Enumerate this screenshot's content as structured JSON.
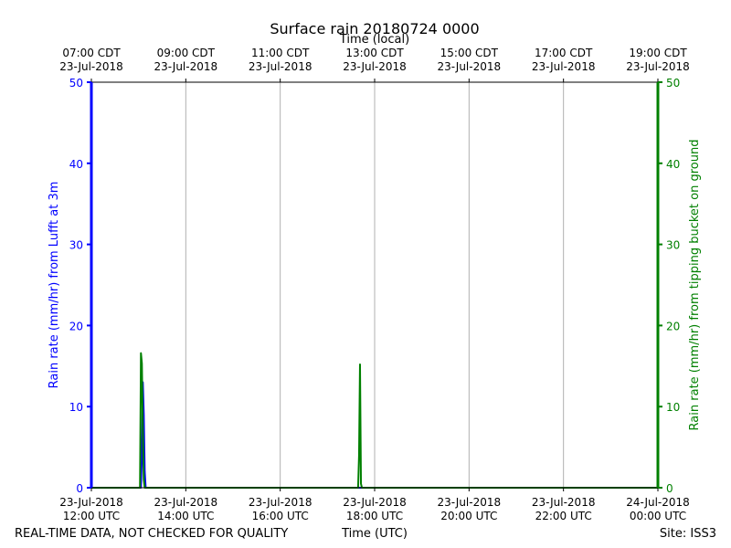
{
  "chart_data": {
    "type": "line",
    "title": "Surface rain 20180724 0000",
    "xlabel": "Time (UTC)",
    "top_xlabel": "Time (local)",
    "ylabel_left": "Rain rate (mm/hr) from Lufft at 3m",
    "ylabel_right": "Rain rate (mm/hr) from tipping bucket on ground",
    "x_unit": "hours UTC on 23-Jul-2018",
    "xlim": [
      12,
      24
    ],
    "ylim": [
      0,
      50
    ],
    "y_ticks": [
      0,
      10,
      20,
      30,
      40,
      50
    ],
    "grid": "vertical",
    "bottom_ticks": [
      {
        "x": 12,
        "line1": "23-Jul-2018",
        "line2": "12:00 UTC"
      },
      {
        "x": 14,
        "line1": "23-Jul-2018",
        "line2": "14:00 UTC"
      },
      {
        "x": 16,
        "line1": "23-Jul-2018",
        "line2": "16:00 UTC"
      },
      {
        "x": 18,
        "line1": "23-Jul-2018",
        "line2": "18:00 UTC"
      },
      {
        "x": 20,
        "line1": "23-Jul-2018",
        "line2": "20:00 UTC"
      },
      {
        "x": 22,
        "line1": "23-Jul-2018",
        "line2": "22:00 UTC"
      },
      {
        "x": 24,
        "line1": "24-Jul-2018",
        "line2": "00:00 UTC"
      }
    ],
    "top_ticks": [
      {
        "x": 12,
        "line1": "07:00 CDT",
        "line2": "23-Jul-2018"
      },
      {
        "x": 14,
        "line1": "09:00 CDT",
        "line2": "23-Jul-2018"
      },
      {
        "x": 16,
        "line1": "11:00 CDT",
        "line2": "23-Jul-2018"
      },
      {
        "x": 18,
        "line1": "13:00 CDT",
        "line2": "23-Jul-2018"
      },
      {
        "x": 20,
        "line1": "15:00 CDT",
        "line2": "23-Jul-2018"
      },
      {
        "x": 22,
        "line1": "17:00 CDT",
        "line2": "23-Jul-2018"
      },
      {
        "x": 24,
        "line1": "19:00 CDT",
        "line2": "23-Jul-2018"
      }
    ],
    "series": [
      {
        "color": "#0000ff",
        "axis": "left",
        "x": [
          12.0,
          13.05,
          13.07,
          13.09,
          13.11,
          13.13,
          13.15,
          13.2,
          24.0
        ],
        "y": [
          0,
          0,
          4,
          13,
          9,
          2,
          0,
          0,
          0
        ]
      },
      {
        "color": "#008000",
        "axis": "right",
        "x": [
          12.0,
          13.03,
          13.05,
          13.07,
          13.09,
          13.11,
          13.13,
          13.16,
          17.65,
          17.67,
          17.69,
          17.71,
          17.73,
          24.0
        ],
        "y": [
          0,
          0,
          16.6,
          15.3,
          7,
          1,
          0,
          0,
          0,
          4,
          15.2,
          0.5,
          0,
          0
        ]
      }
    ]
  },
  "footer": {
    "left_note": "REAL-TIME DATA, NOT CHECKED FOR QUALITY",
    "site": "Site: ISS3"
  }
}
